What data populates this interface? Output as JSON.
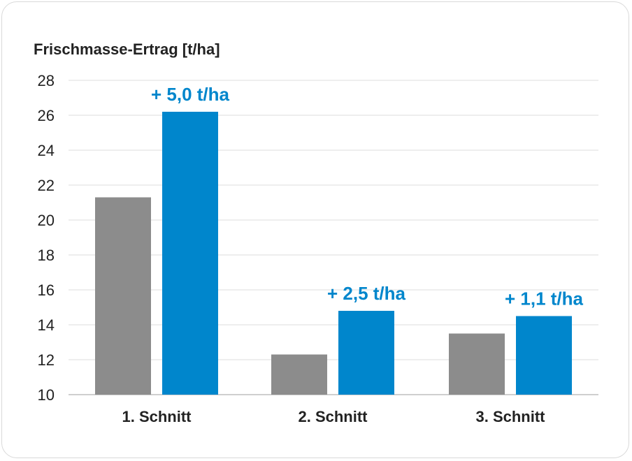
{
  "chart_data": {
    "type": "bar",
    "ylabel": "Frischmasse-Ertrag [t/ha]",
    "categories": [
      "1. Schnitt",
      "2. Schnitt",
      "3. Schnitt"
    ],
    "series": [
      {
        "values": [
          21.3,
          12.3,
          13.5
        ],
        "color": "#8c8c8c"
      },
      {
        "values": [
          26.2,
          14.8,
          14.5
        ],
        "color": "#0086cc"
      }
    ],
    "annotations": [
      "+ 5,0 t/ha",
      "+ 2,5 t/ha",
      "+ 1,1 t/ha"
    ],
    "annotation_color": "#0086cc",
    "ylim": [
      10,
      28
    ],
    "yticks": [
      "10",
      "12",
      "14",
      "16",
      "18",
      "20",
      "22",
      "24",
      "26",
      "28"
    ],
    "grid": true
  }
}
